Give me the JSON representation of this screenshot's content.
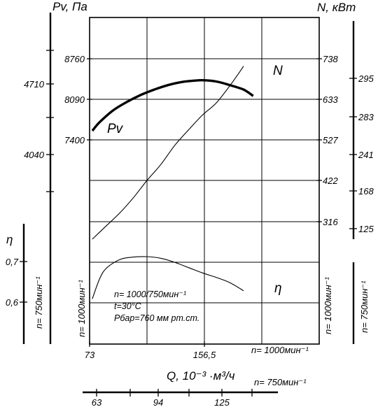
{
  "chart_data": {
    "type": "line",
    "axes": {
      "left_pressure": {
        "title": "Pv, Па",
        "n1000_ticks": [
          "8760",
          "8090",
          "7400"
        ],
        "n750_ticks": [
          "4710",
          "4040"
        ]
      },
      "left_efficiency": {
        "title": "η",
        "ticks": [
          "0,7",
          "0,6"
        ],
        "rpm_label": "n= 750мин⁻¹",
        "rpm_label_2": "n= 1000мин⁻¹"
      },
      "right_power": {
        "title": "N, кВт",
        "n1000_ticks": [
          "738",
          "633",
          "527",
          "422",
          "316"
        ],
        "n750_ticks": [
          "295",
          "283",
          "241",
          "168",
          "125"
        ],
        "rpm_label_1000": "n= 1000мин⁻¹",
        "rpm_label_750": "n= 750мин⁻¹"
      },
      "bottom_flow": {
        "title": "Q, 10⁻³ ·м³/ч",
        "n1000_ticks": [
          "73",
          "156,5"
        ],
        "n1000_label": "n= 1000мин⁻¹",
        "n750_ticks": [
          "63",
          "94",
          "125"
        ],
        "n750_label": "n= 750мин⁻¹"
      }
    },
    "grid": true,
    "series": [
      {
        "name": "Pv",
        "axis": "pressure",
        "points": [
          [
            75,
            7570
          ],
          [
            80,
            7705
          ],
          [
            90,
            7905
          ],
          [
            100,
            8045
          ],
          [
            110,
            8160
          ],
          [
            120,
            8250
          ],
          [
            130,
            8325
          ],
          [
            140,
            8375
          ],
          [
            150,
            8400
          ],
          [
            156.5,
            8404
          ],
          [
            165,
            8385
          ],
          [
            175,
            8325
          ],
          [
            185,
            8250
          ],
          [
            192,
            8145
          ]
        ]
      },
      {
        "name": "N",
        "axis": "power",
        "points": [
          [
            75,
            271
          ],
          [
            85,
            305
          ],
          [
            95,
            339
          ],
          [
            105,
            379
          ],
          [
            115,
            424
          ],
          [
            125,
            465
          ],
          [
            135,
            514
          ],
          [
            145,
            554
          ],
          [
            155,
            592
          ],
          [
            165,
            623
          ],
          [
            175,
            668
          ],
          [
            182,
            703
          ],
          [
            185,
            719
          ]
        ]
      },
      {
        "name": "η",
        "axis": "efficiency",
        "points": [
          [
            75,
            0.608
          ],
          [
            80,
            0.655
          ],
          [
            85,
            0.683
          ],
          [
            95,
            0.705
          ],
          [
            105,
            0.711
          ],
          [
            115,
            0.712
          ],
          [
            125,
            0.708
          ],
          [
            135,
            0.698
          ],
          [
            145,
            0.685
          ],
          [
            155,
            0.672
          ],
          [
            165,
            0.661
          ],
          [
            175,
            0.648
          ],
          [
            185,
            0.628
          ]
        ]
      }
    ],
    "annotations": [
      "n= 1000/750мин⁻¹",
      "t=30°C",
      "Pбар=760 мм рт.ст."
    ]
  }
}
